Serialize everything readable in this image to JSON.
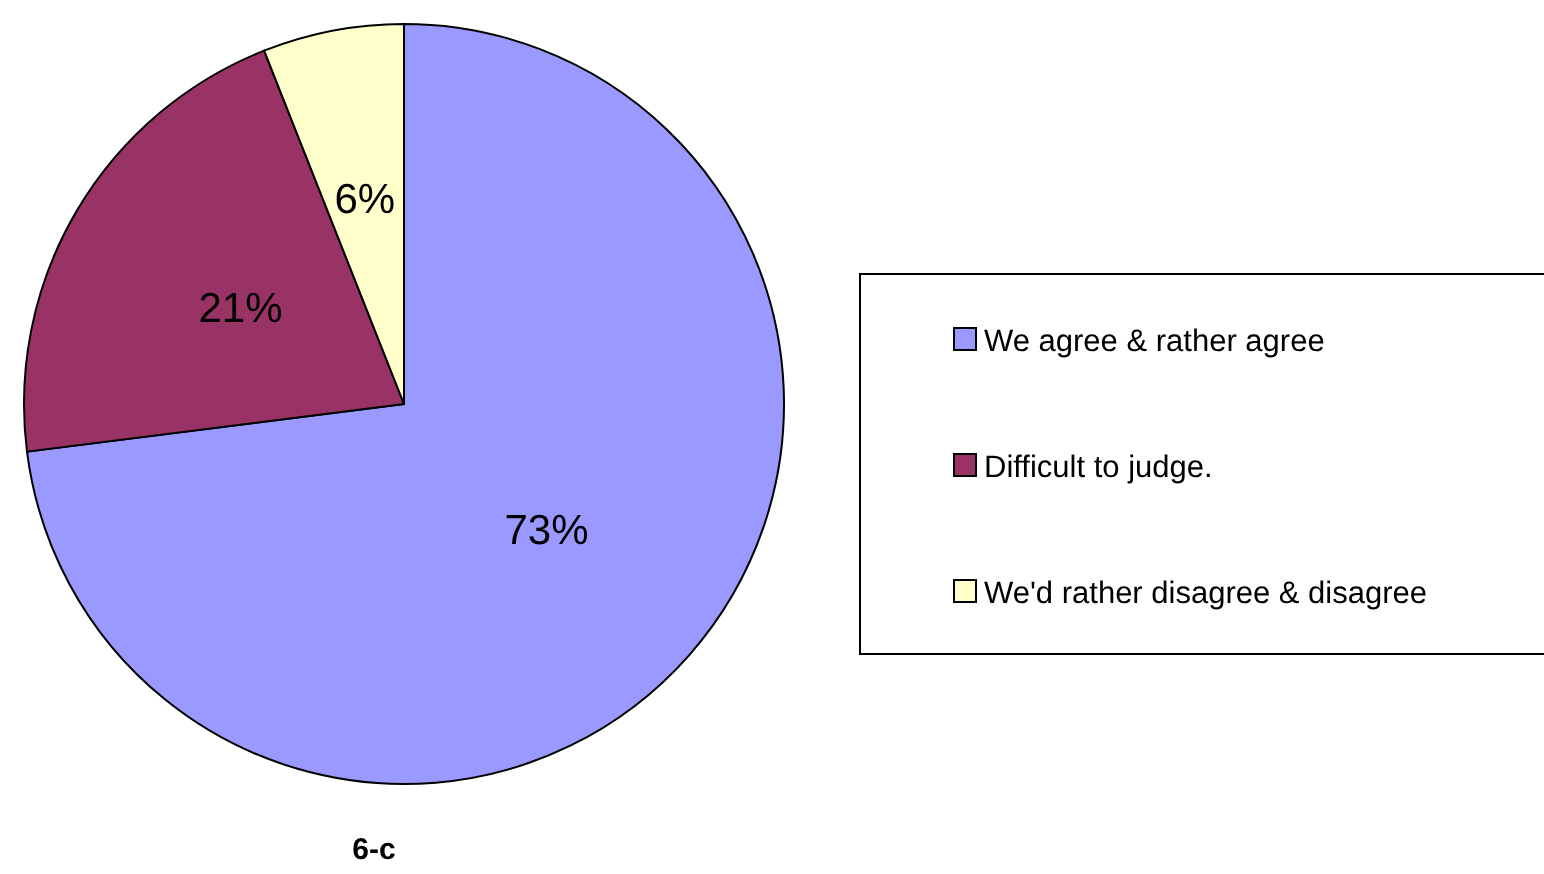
{
  "chart_data": {
    "type": "pie",
    "categories": [
      "We agree & rather agree",
      "Difficult to judge.",
      "We'd rather disagree & disagree"
    ],
    "values": [
      73,
      21,
      6
    ],
    "colors": [
      "#9999ff",
      "#993366",
      "#ffffcc"
    ],
    "value_labels": [
      "73%",
      "21%",
      "6%"
    ],
    "legend": "right",
    "annotations": [
      "6-c"
    ]
  }
}
